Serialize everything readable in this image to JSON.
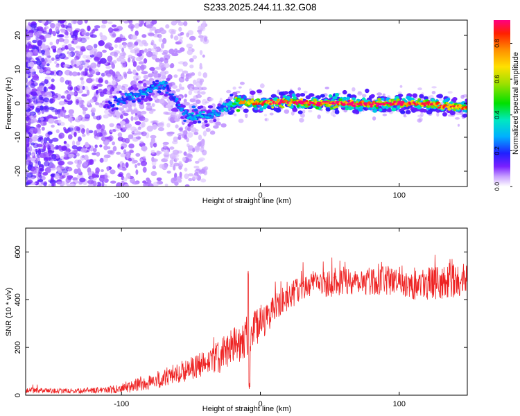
{
  "page": {
    "title": "S233.2025.244.11.32.G08"
  },
  "colors": {
    "snr_line": "#ee2222",
    "background": "#ffffff",
    "axis": "#000000"
  },
  "chart_data": [
    {
      "type": "heatmap",
      "xlabel": "Height of straight line (km)",
      "ylabel": "Frequency (Hz)",
      "xlim": [
        -169,
        149
      ],
      "ylim": [
        -24.5,
        24.5
      ],
      "x_ticks": [
        -100,
        0,
        100
      ],
      "y_ticks": [
        -20,
        -10,
        0,
        10,
        20
      ],
      "grid": false,
      "colorbar": {
        "label": "Normalized spectral amplitude",
        "range": [
          0,
          0.93
        ],
        "ticks": [
          "0.0",
          "0.2",
          "0.4",
          "0.6",
          "0.8"
        ],
        "tick_values": [
          0,
          0.2,
          0.4,
          0.6,
          0.8
        ],
        "colormap": "rainbow"
      },
      "signal_trace": {
        "description_x": [
          -110,
          -100,
          -90,
          -80,
          -75,
          -70,
          -65,
          -60,
          -55,
          -50,
          -45,
          -40,
          -35,
          -30,
          -25,
          -20,
          -15,
          0,
          20,
          40,
          60,
          80,
          100,
          120,
          140,
          149
        ],
        "frequency_hz": [
          -0.5,
          1,
          2.5,
          4,
          5,
          5.5,
          3,
          0,
          -2.5,
          -4,
          -3,
          -4,
          -3,
          -2.5,
          -1,
          0,
          0.5,
          0,
          0.5,
          0,
          0,
          -0.3,
          0,
          -0.2,
          -1,
          -1.2
        ],
        "peak_amplitude": [
          0.15,
          0.25,
          0.3,
          0.3,
          0.3,
          0.3,
          0.2,
          0.25,
          0.3,
          0.3,
          0.35,
          0.3,
          0.3,
          0.3,
          0.35,
          0.45,
          0.7,
          0.85,
          0.9,
          0.9,
          0.9,
          0.88,
          0.88,
          0.85,
          0.85,
          0.8
        ]
      }
    },
    {
      "type": "line",
      "xlabel": "Height of straight line (km)",
      "ylabel": "SNR (10 * v/v)",
      "xlim": [
        -169,
        149
      ],
      "ylim": [
        0,
        700
      ],
      "x_ticks": [
        -100,
        0,
        100
      ],
      "y_ticks": [
        0,
        200,
        400,
        600
      ],
      "grid": false,
      "series": [
        {
          "x": [
            -169,
            -150,
            -130,
            -120,
            -110,
            -100,
            -90,
            -80,
            -70,
            -60,
            -50,
            -40,
            -30,
            -20,
            -10,
            0,
            10,
            20,
            30,
            40,
            50,
            60,
            70,
            80,
            90,
            100,
            110,
            120,
            130,
            140,
            149
          ],
          "mean": [
            20,
            18,
            18,
            20,
            22,
            28,
            40,
            55,
            70,
            95,
            110,
            130,
            160,
            200,
            250,
            300,
            360,
            410,
            450,
            470,
            470,
            480,
            480,
            480,
            480,
            480,
            470,
            470,
            470,
            480,
            480
          ],
          "noise": [
            12,
            10,
            10,
            12,
            15,
            20,
            28,
            35,
            40,
            45,
            50,
            60,
            70,
            80,
            90,
            80,
            60,
            55,
            55,
            55,
            60,
            60,
            60,
            60,
            60,
            65,
            70,
            70,
            70,
            70,
            70
          ]
        }
      ],
      "annotations": [
        {
          "x": -8.5,
          "peak": 530
        }
      ]
    }
  ]
}
